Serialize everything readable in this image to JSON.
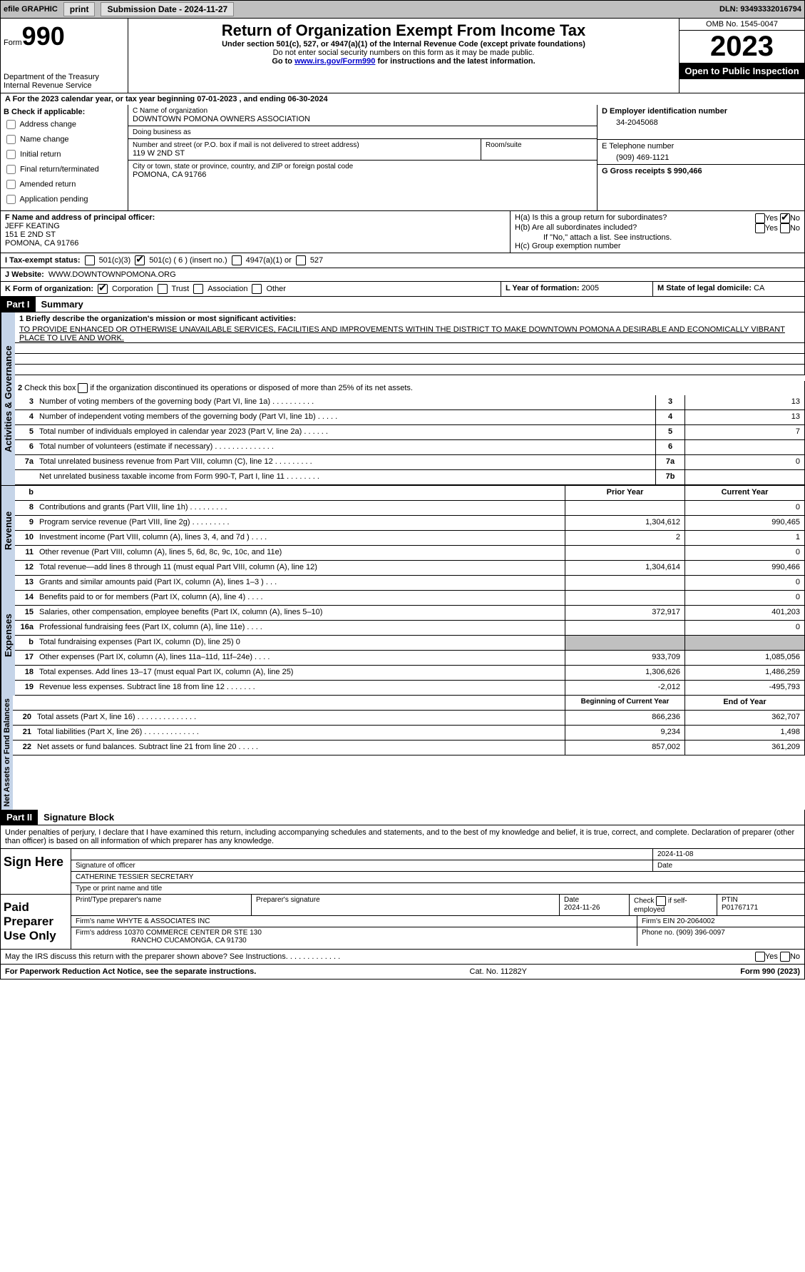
{
  "topbar": {
    "efile": "efile GRAPHIC",
    "print": "print",
    "submission_label": "Submission Date - ",
    "submission_date": "2024-11-27",
    "dln_label": "DLN: ",
    "dln": "93493332016794"
  },
  "header": {
    "form_label": "Form",
    "form_no": "990",
    "dept": "Department of the Treasury",
    "irs": "Internal Revenue Service",
    "title": "Return of Organization Exempt From Income Tax",
    "subtitle": "Under section 501(c), 527, or 4947(a)(1) of the Internal Revenue Code (except private foundations)",
    "note1": "Do not enter social security numbers on this form as it may be made public.",
    "note2_pre": "Go to ",
    "note2_link": "www.irs.gov/Form990",
    "note2_post": " for instructions and the latest information.",
    "omb": "OMB No. 1545-0047",
    "year": "2023",
    "open": "Open to Public Inspection"
  },
  "lineA": {
    "text_pre": "A  For the 2023 calendar year, or tax year beginning ",
    "begin": "07-01-2023",
    "mid": "   , and ending ",
    "end": "06-30-2024"
  },
  "sectionB": {
    "title": "B Check if applicable:",
    "items": [
      "Address change",
      "Name change",
      "Initial return",
      "Final return/terminated",
      "Amended return",
      "Application pending"
    ]
  },
  "sectionC": {
    "name_label": "C Name of organization",
    "name": "DOWNTOWN POMONA OWNERS ASSOCIATION",
    "dba_label": "Doing business as",
    "dba": "",
    "street_label": "Number and street (or P.O. box if mail is not delivered to street address)",
    "room_label": "Room/suite",
    "street": "119 W 2ND ST",
    "city_label": "City or town, state or province, country, and ZIP or foreign postal code",
    "city": "POMONA, CA  91766"
  },
  "sectionD": {
    "label": "D Employer identification number",
    "ein": "34-2045068"
  },
  "sectionE": {
    "label": "E Telephone number",
    "phone": "(909) 469-1121"
  },
  "sectionG": {
    "label": "G Gross receipts $ ",
    "amount": "990,466"
  },
  "sectionF": {
    "label": "F  Name and address of principal officer:",
    "name": "JEFF KEATING",
    "addr1": "151 E 2ND ST",
    "addr2": "POMONA, CA  91766"
  },
  "sectionH": {
    "ha": "H(a)  Is this a group return for subordinates?",
    "hb": "H(b)  Are all subordinates included?",
    "hb_note": "If \"No,\" attach a list. See instructions.",
    "hc": "H(c)  Group exemption number ",
    "yes": "Yes",
    "no": "No"
  },
  "sectionI": {
    "label": "I    Tax-exempt status:",
    "c3": "501(c)(3)",
    "c": "501(c) ( 6 ) (insert no.)",
    "a1": "4947(a)(1) or",
    "s527": "527"
  },
  "sectionJ": {
    "label": "J    Website: ",
    "url": "WWW.DOWNTOWNPOMONA.ORG"
  },
  "sectionK": {
    "label": "K Form of organization:",
    "corp": "Corporation",
    "trust": "Trust",
    "assoc": "Association",
    "other": "Other"
  },
  "sectionL": {
    "label": "L Year of formation: ",
    "year": "2005"
  },
  "sectionM": {
    "label": "M State of legal domicile: ",
    "state": "CA"
  },
  "part1": {
    "header": "Part I",
    "title": "Summary",
    "line1_label": "1   Briefly describe the organization's mission or most significant activities:",
    "mission": "TO PROVIDE ENHANCED OR OTHERWISE UNAVAILABLE SERVICES, FACILITIES AND IMPROVEMENTS WITHIN THE DISTRICT TO MAKE DOWNTOWN POMONA A DESIRABLE AND ECONOMICALLY VIBRANT PLACE TO LIVE AND WORK.",
    "line2": "2   Check this box     if the organization discontinued its operations or disposed of more than 25% of its net assets.",
    "rows_ag": [
      {
        "n": "3",
        "t": "Number of voting members of the governing body (Part VI, line 1a)  .  .  .  .  .  .  .  .  .  .",
        "box": "3",
        "v": "13"
      },
      {
        "n": "4",
        "t": "Number of independent voting members of the governing body (Part VI, line 1b)   .  .  .  .  .",
        "box": "4",
        "v": "13"
      },
      {
        "n": "5",
        "t": "Total number of individuals employed in calendar year 2023 (Part V, line 2a)  .  .  .  .  .  .",
        "box": "5",
        "v": "7"
      },
      {
        "n": "6",
        "t": "Total number of volunteers (estimate if necessary)   .  .  .  .  .  .  .  .  .  .  .  .  .  .",
        "box": "6",
        "v": ""
      },
      {
        "n": "7a",
        "t": "Total unrelated business revenue from Part VIII, column (C), line 12  .  .  .  .  .  .  .  .  .",
        "box": "7a",
        "v": "0"
      },
      {
        "n": "",
        "t": "Net unrelated business taxable income from Form 990-T, Part I, line 11  .  .  .  .  .  .  .  .",
        "box": "7b",
        "v": ""
      }
    ],
    "col_prior": "Prior Year",
    "col_current": "Current Year",
    "revenue": [
      {
        "n": "8",
        "t": "Contributions and grants (Part VIII, line 1h)  .  .  .  .  .  .  .  .  .",
        "p": "",
        "c": "0"
      },
      {
        "n": "9",
        "t": "Program service revenue (Part VIII, line 2g)   .  .  .  .  .  .  .  .  .",
        "p": "1,304,612",
        "c": "990,465"
      },
      {
        "n": "10",
        "t": "Investment income (Part VIII, column (A), lines 3, 4, and 7d )  .  .  .  .",
        "p": "2",
        "c": "1"
      },
      {
        "n": "11",
        "t": "Other revenue (Part VIII, column (A), lines 5, 6d, 8c, 9c, 10c, and 11e)",
        "p": "",
        "c": "0"
      },
      {
        "n": "12",
        "t": "Total revenue—add lines 8 through 11 (must equal Part VIII, column (A), line 12)",
        "p": "1,304,614",
        "c": "990,466"
      }
    ],
    "expenses": [
      {
        "n": "13",
        "t": "Grants and similar amounts paid (Part IX, column (A), lines 1–3 )  .  .  .",
        "p": "",
        "c": "0"
      },
      {
        "n": "14",
        "t": "Benefits paid to or for members (Part IX, column (A), line 4)  .  .  .  .",
        "p": "",
        "c": "0"
      },
      {
        "n": "15",
        "t": "Salaries, other compensation, employee benefits (Part IX, column (A), lines 5–10)",
        "p": "372,917",
        "c": "401,203"
      },
      {
        "n": "16a",
        "t": "Professional fundraising fees (Part IX, column (A), line 11e)  .  .  .  .",
        "p": "",
        "c": "0"
      },
      {
        "n": "b",
        "t": "Total fundraising expenses (Part IX, column (D), line 25) 0",
        "p": "shaded",
        "c": "shaded"
      },
      {
        "n": "17",
        "t": "Other expenses (Part IX, column (A), lines 11a–11d, 11f–24e)  .  .  .  .",
        "p": "933,709",
        "c": "1,085,056"
      },
      {
        "n": "18",
        "t": "Total expenses. Add lines 13–17 (must equal Part IX, column (A), line 25)",
        "p": "1,306,626",
        "c": "1,486,259"
      },
      {
        "n": "19",
        "t": "Revenue less expenses. Subtract line 18 from line 12  .  .  .  .  .  .  .",
        "p": "-2,012",
        "c": "-495,793"
      }
    ],
    "col_begin": "Beginning of Current Year",
    "col_end": "End of Year",
    "netassets": [
      {
        "n": "20",
        "t": "Total assets (Part X, line 16)  .  .  .  .  .  .  .  .  .  .  .  .  .  .",
        "p": "866,236",
        "c": "362,707"
      },
      {
        "n": "21",
        "t": "Total liabilities (Part X, line 26)  .  .  .  .  .  .  .  .  .  .  .  .  .",
        "p": "9,234",
        "c": "1,498"
      },
      {
        "n": "22",
        "t": "Net assets or fund balances. Subtract line 21 from line 20  .  .  .  .  .",
        "p": "857,002",
        "c": "361,209"
      }
    ],
    "vert_ag": "Activities & Governance",
    "vert_rev": "Revenue",
    "vert_exp": "Expenses",
    "vert_net": "Net Assets or Fund Balances"
  },
  "part2": {
    "header": "Part II",
    "title": "Signature Block",
    "decl": "Under penalties of perjury, I declare that I have examined this return, including accompanying schedules and statements, and to the best of my knowledge and belief, it is true, correct, and complete. Declaration of preparer (other than officer) is based on all information of which preparer has any knowledge.",
    "sign_here": "Sign Here",
    "sig_officer": "Signature of officer",
    "officer_name": "CATHERINE TESSIER  SECRETARY",
    "type_name": "Type or print name and title",
    "date_label": "Date",
    "sign_date": "2024-11-08",
    "paid_preparer": "Paid Preparer Use Only",
    "prep_name_label": "Print/Type preparer's name",
    "prep_sig_label": "Preparer's signature",
    "prep_date": "2024-11-26",
    "check_self": "Check        if self-employed",
    "ptin_label": "PTIN",
    "ptin": "P01767171",
    "firm_name_label": "Firm's name   ",
    "firm_name": "WHYTE & ASSOCIATES INC",
    "firm_ein_label": "Firm's EIN  ",
    "firm_ein": "20-2064002",
    "firm_addr_label": "Firm's address ",
    "firm_addr1": "10370 COMMERCE CENTER DR STE 130",
    "firm_addr2": "RANCHO CUCAMONGA, CA  91730",
    "phone_label": "Phone no. ",
    "phone": "(909) 396-0097",
    "discuss": "May the IRS discuss this return with the preparer shown above? See Instructions.  .  .  .  .  .  .  .  .  .  .  .  .",
    "yes": "Yes",
    "no": "No"
  },
  "footer": {
    "left": "For Paperwork Reduction Act Notice, see the separate instructions.",
    "center": "Cat. No. 11282Y",
    "right": "Form 990 (2023)"
  }
}
